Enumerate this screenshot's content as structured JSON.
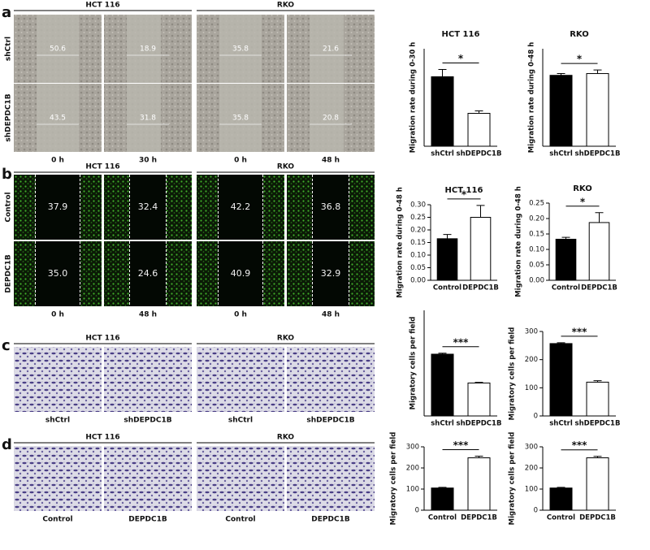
{
  "panels": [
    {
      "label": "a",
      "groups": [
        "HCT 116",
        "RKO"
      ],
      "rows": [
        "shCtrl",
        "shDEPDC1B"
      ],
      "columns": [
        "0 h",
        "30 h",
        "0 h",
        "48 h"
      ],
      "cells": [
        [
          "50.6",
          "18.9",
          "35.8",
          "21.6"
        ],
        [
          "43.5",
          "31.8",
          "35.8",
          "20.8"
        ]
      ]
    },
    {
      "label": "b",
      "groups": [
        "HCT 116",
        "RKO"
      ],
      "rows": [
        "Control",
        "DEPDC1B"
      ],
      "columns": [
        "0 h",
        "48 h",
        "0 h",
        "48 h"
      ],
      "cells": [
        [
          "37.9",
          "32.4",
          "42.2",
          "36.8"
        ],
        [
          "35.0",
          "24.6",
          "40.9",
          "32.9"
        ]
      ]
    },
    {
      "label": "c",
      "groups": [
        "HCT 116",
        "RKO"
      ],
      "columns": [
        "shCtrl",
        "shDEPDC1B",
        "shCtrl",
        "shDEPDC1B"
      ]
    },
    {
      "label": "d",
      "groups": [
        "HCT 116",
        "RKO"
      ],
      "columns": [
        "Control",
        "DEPDC1B",
        "Control",
        "DEPDC1B"
      ]
    }
  ],
  "chart_data": [
    {
      "type": "bar",
      "title": "HCT 116",
      "y_label": "Migration rate during 0-30 h",
      "categories": [
        "shCtrl",
        "shDEPDC1B"
      ],
      "values": [
        0.57,
        0.27
      ],
      "errors": [
        0.06,
        0.02
      ],
      "colors": [
        "#000000",
        "#ffffff"
      ],
      "significance": "*",
      "ylim": [
        0,
        0.8
      ]
    },
    {
      "type": "bar",
      "title": "RKO",
      "y_label": "Migration rate during 0-48 h",
      "categories": [
        "shCtrl",
        "shDEPDC1B"
      ],
      "values": [
        0.4,
        0.41
      ],
      "errors": [
        0.01,
        0.02
      ],
      "colors": [
        "#000000",
        "#ffffff"
      ],
      "significance": "*",
      "ylim": [
        0,
        0.55
      ]
    },
    {
      "type": "bar",
      "title": "HCT 116",
      "y_label": "Migration rate during 0-48 h",
      "categories": [
        "Control",
        "DEPDC1B"
      ],
      "values": [
        0.165,
        0.25
      ],
      "errors": [
        0.017,
        0.047
      ],
      "colors": [
        "#000000",
        "#ffffff"
      ],
      "significance": "*",
      "ylim": [
        0,
        0.3
      ],
      "yticks": [
        {
          "value": 0,
          "label": "0.00"
        },
        {
          "value": 0.05,
          "label": "0.05"
        },
        {
          "value": 0.1,
          "label": "0.10"
        },
        {
          "value": 0.15,
          "label": "0.15"
        },
        {
          "value": 0.2,
          "label": "0.20"
        },
        {
          "value": 0.25,
          "label": "0.25"
        },
        {
          "value": 0.3,
          "label": "0.30"
        }
      ]
    },
    {
      "type": "bar",
      "title": "RKO",
      "y_label": "Migration rate during 0-48 h",
      "categories": [
        "Control",
        "DEPDC1B"
      ],
      "values": [
        0.133,
        0.187
      ],
      "errors": [
        0.006,
        0.032
      ],
      "colors": [
        "#000000",
        "#ffffff"
      ],
      "significance": "*",
      "ylim": [
        0,
        0.25
      ],
      "yticks": [
        {
          "value": 0,
          "label": "0.00"
        },
        {
          "value": 0.05,
          "label": "0.05"
        },
        {
          "value": 0.1,
          "label": "0.10"
        },
        {
          "value": 0.15,
          "label": "0.15"
        },
        {
          "value": 0.2,
          "label": "0.20"
        },
        {
          "value": 0.25,
          "label": "0.25"
        }
      ]
    },
    {
      "type": "bar",
      "y_label": "Migratory cells per field",
      "categories": [
        "shCtrl",
        "shDEPDC1B"
      ],
      "values": [
        193,
        103
      ],
      "errors": [
        3,
        2
      ],
      "colors": [
        "#000000",
        "#ffffff"
      ],
      "significance": "***",
      "ylim": [
        0,
        330
      ]
    },
    {
      "type": "bar",
      "y_label": "Migratory cells per field",
      "categories": [
        "shCtrl",
        "shDEPDC1B"
      ],
      "values": [
        257,
        120
      ],
      "errors": [
        3,
        5
      ],
      "colors": [
        "#000000",
        "#ffffff"
      ],
      "significance": "***",
      "ylim": [
        0,
        300
      ],
      "yticks": [
        0,
        100,
        200,
        300
      ]
    },
    {
      "type": "bar",
      "y_label": "Migratory cells per field",
      "categories": [
        "Control",
        "DEPDC1B"
      ],
      "values": [
        105,
        248
      ],
      "errors": [
        3,
        8
      ],
      "colors": [
        "#000000",
        "#ffffff"
      ],
      "significance": "***",
      "ylim": [
        0,
        300
      ],
      "yticks": [
        0,
        100,
        200,
        300
      ]
    },
    {
      "type": "bar",
      "y_label": "Migratory cells per field",
      "categories": [
        "Control",
        "DEPDC1B"
      ],
      "values": [
        105,
        248
      ],
      "errors": [
        3,
        7
      ],
      "colors": [
        "#000000",
        "#ffffff"
      ],
      "significance": "***",
      "ylim": [
        0,
        300
      ],
      "yticks": [
        0,
        100,
        200,
        300
      ]
    }
  ]
}
